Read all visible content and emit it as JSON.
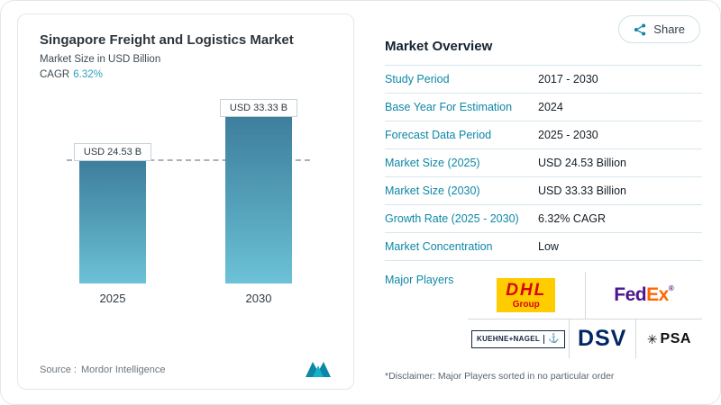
{
  "header": {
    "share_label": "Share"
  },
  "chart": {
    "title": "Singapore Freight and Logistics Market",
    "subtitle": "Market Size in USD Billion",
    "cagr_label": "CAGR",
    "cagr_value": "6.32%",
    "source_label": "Source :",
    "source_value": "Mordor Intelligence"
  },
  "chart_data": {
    "type": "bar",
    "title": "Singapore Freight and Logistics Market",
    "ylabel": "Market Size in USD Billion",
    "categories": [
      "2025",
      "2030"
    ],
    "values": [
      24.53,
      33.33
    ],
    "bar_labels": [
      "USD 24.53 B",
      "USD 33.33 B"
    ],
    "unit": "USD Billion",
    "ylim": [
      0,
      33.33
    ],
    "reference_line_value": 24.53,
    "cagr": "6.32%",
    "bar_gradient": [
      "#3e7e9d",
      "#6cc2d7"
    ],
    "grid": false,
    "legend": "none"
  },
  "overview": {
    "title": "Market Overview",
    "rows": [
      {
        "label": "Study Period",
        "value": "2017 - 2030"
      },
      {
        "label": "Base Year For Estimation",
        "value": "2024"
      },
      {
        "label": "Forecast Data Period",
        "value": "2025 - 2030"
      },
      {
        "label": "Market Size (2025)",
        "value": "USD 24.53 Billion"
      },
      {
        "label": "Market Size (2030)",
        "value": "USD 33.33 Billion"
      },
      {
        "label": "Growth Rate (2025 - 2030)",
        "value": "6.32% CAGR"
      },
      {
        "label": "Market Concentration",
        "value": "Low"
      }
    ],
    "major_players_label": "Major Players",
    "players": {
      "dhl": {
        "text": "DHL",
        "sub": "Group"
      },
      "fedex": {
        "part1": "Fed",
        "part2": "Ex",
        "reg": "®"
      },
      "kuehne_nagel": {
        "text": "KUEHNE+NAGEL",
        "icon": "⚓"
      },
      "dsv": {
        "text": "DSV"
      },
      "psa": {
        "text": "PSA",
        "icon": "✳"
      }
    },
    "disclaimer": "*Disclaimer: Major Players sorted in no particular order"
  },
  "colors": {
    "accent": "#0d87a6",
    "dhl_yellow": "#ffcc00",
    "dhl_red": "#d40511",
    "fedex_purple": "#4d148c",
    "fedex_orange": "#ff6600",
    "dsv_navy": "#002664"
  }
}
